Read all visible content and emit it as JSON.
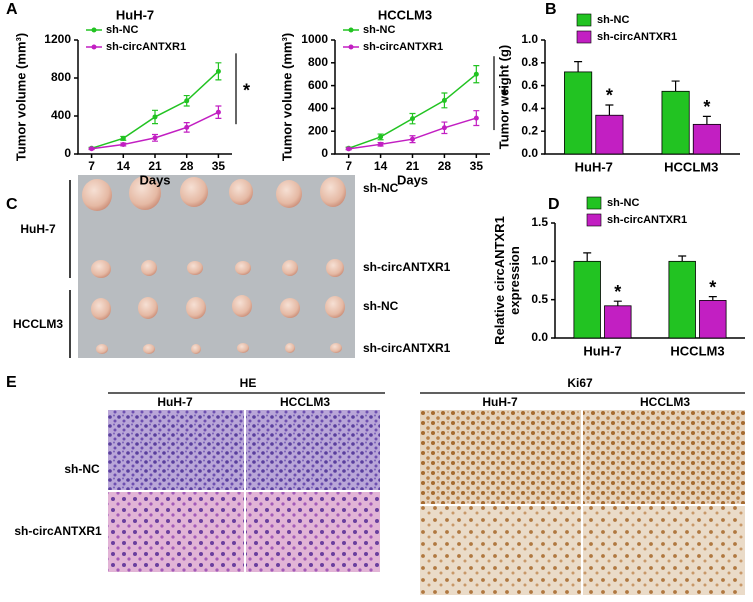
{
  "chart_data": [
    {
      "type": "line",
      "title": "HuH-7",
      "y_label": [
        "Tumor volume (mm³)"
      ],
      "x_label": "Days",
      "x": [
        7,
        14,
        21,
        28,
        35
      ],
      "xlim": [
        4,
        38
      ],
      "xticks": [
        7,
        14,
        21,
        28,
        35
      ],
      "ylim": [
        0,
        1200
      ],
      "yticks": [
        0,
        400,
        800,
        1200
      ],
      "legend": "upper left",
      "series": [
        {
          "name": "sh-NC",
          "color": "#22c322",
          "values": [
            60,
            165,
            390,
            560,
            870
          ],
          "errors": [
            10,
            20,
            70,
            55,
            90
          ]
        },
        {
          "name": "sh-circANTXR1",
          "color": "#c21fc2",
          "values": [
            55,
            100,
            170,
            280,
            440
          ],
          "errors": [
            8,
            15,
            35,
            50,
            65
          ]
        }
      ],
      "annotations": [
        "*"
      ]
    },
    {
      "type": "line",
      "title": "HCCLM3",
      "y_label": [
        "Tumor volume (mm³)"
      ],
      "x_label": "Days",
      "x": [
        7,
        14,
        21,
        28,
        35
      ],
      "xlim": [
        4,
        38
      ],
      "xticks": [
        7,
        14,
        21,
        28,
        35
      ],
      "ylim": [
        0,
        1000
      ],
      "yticks": [
        0,
        200,
        400,
        600,
        800,
        1000
      ],
      "legend": "upper left",
      "series": [
        {
          "name": "sh-NC",
          "color": "#22c322",
          "values": [
            50,
            150,
            310,
            470,
            700
          ],
          "errors": [
            10,
            25,
            45,
            65,
            75
          ]
        },
        {
          "name": "sh-circANTXR1",
          "color": "#c21fc2",
          "values": [
            45,
            85,
            130,
            230,
            315
          ],
          "errors": [
            8,
            15,
            30,
            50,
            65
          ]
        }
      ],
      "annotations": [
        "*"
      ]
    },
    {
      "type": "bar",
      "y_label": [
        "Tumor weight (g)"
      ],
      "categories": [
        "HuH-7",
        "HCCLM3"
      ],
      "ylim": [
        0,
        1.0
      ],
      "yticks": [
        {
          "value": 0,
          "label": "0.0"
        },
        0.2,
        0.4,
        0.6,
        0.8,
        {
          "value": 1.0,
          "label": "1.0"
        }
      ],
      "legend": "upper left",
      "series": [
        {
          "name": "sh-NC",
          "color": "#22c322",
          "values": [
            0.72,
            0.55
          ],
          "errors": [
            0.09,
            0.09
          ]
        },
        {
          "name": "sh-circANTXR1",
          "color": "#c21fc2",
          "values": [
            0.34,
            0.26
          ],
          "errors": [
            0.09,
            0.07
          ]
        }
      ],
      "annotations": [
        "*",
        "*"
      ]
    },
    {
      "type": "bar",
      "y_label": [
        "Relative circANTXR1",
        "expression"
      ],
      "categories": [
        "HuH-7",
        "HCCLM3"
      ],
      "ylim": [
        0,
        1.5
      ],
      "yticks": [
        {
          "value": 0,
          "label": "0.0"
        },
        0.5,
        {
          "value": 1.0,
          "label": "1.0"
        },
        1.5
      ],
      "legend": "upper left",
      "series": [
        {
          "name": "sh-NC",
          "color": "#22c322",
          "values": [
            1.0,
            1.0
          ],
          "errors": [
            0.11,
            0.07
          ]
        },
        {
          "name": "sh-circANTXR1",
          "color": "#c21fc2",
          "values": [
            0.42,
            0.49
          ],
          "errors": [
            0.06,
            0.05
          ]
        }
      ],
      "annotations": [
        "*",
        "*"
      ]
    }
  ],
  "panels": {
    "a": "A",
    "b": "B",
    "c": "C",
    "d": "D",
    "e": "E"
  },
  "photo": {
    "groups": [
      "HuH-7",
      "HCCLM3"
    ],
    "rows": [
      "sh-NC",
      "sh-circANTXR1",
      "sh-NC",
      "sh-circANTXR1"
    ]
  },
  "histology": {
    "stains": [
      "HE",
      "Ki67"
    ],
    "lines": [
      "HuH-7",
      "HCCLM3",
      "HuH-7",
      "HCCLM3"
    ],
    "rows": [
      "sh-NC",
      "sh-circANTXR1"
    ]
  }
}
